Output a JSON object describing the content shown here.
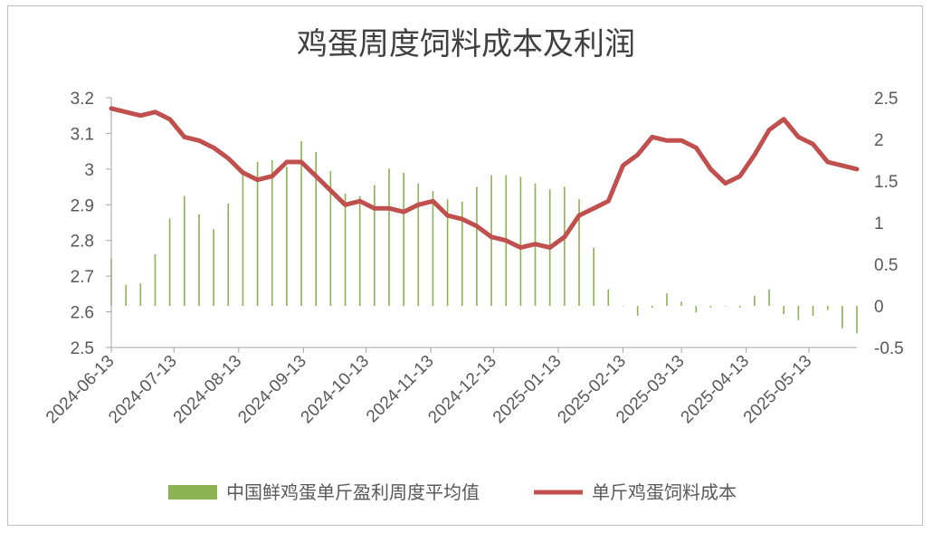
{
  "chart_data": {
    "type": "bar+line",
    "title": "鸡蛋周度饲料成本及利润",
    "x_tick_labels": [
      "2024-06-13",
      "2024-07-13",
      "2024-08-13",
      "2024-09-13",
      "2024-10-13",
      "2024-11-13",
      "2024-12-13",
      "2025-01-13",
      "2025-02-13",
      "2025-03-13",
      "2025-04-13",
      "2025-05-13"
    ],
    "y_left": {
      "min": 2.5,
      "max": 3.2,
      "step": 0.1,
      "tick_labels": [
        "2.5",
        "2.6",
        "2.7",
        "2.8",
        "2.9",
        "3",
        "3.1",
        "3.2"
      ]
    },
    "y_right": {
      "min": -0.5,
      "max": 2.5,
      "step": 0.5,
      "tick_labels": [
        "-0.5",
        "0",
        "0.5",
        "1",
        "1.5",
        "2",
        "2.5"
      ]
    },
    "series": [
      {
        "name": "中国鲜鸡蛋单斤盈利周度平均值",
        "type": "bar",
        "axis": "right",
        "color": "#8db254",
        "values": [
          0.57,
          0.25,
          0.27,
          0.62,
          1.05,
          1.32,
          1.1,
          0.92,
          1.23,
          1.58,
          1.73,
          1.75,
          1.67,
          1.98,
          1.85,
          1.62,
          1.35,
          1.32,
          1.45,
          1.65,
          1.6,
          1.47,
          1.38,
          1.28,
          1.25,
          1.43,
          1.57,
          1.57,
          1.55,
          1.47,
          1.4,
          1.43,
          1.28,
          0.7,
          0.2,
          0.0,
          -0.12,
          -0.02,
          0.15,
          0.05,
          -0.08,
          -0.02,
          0.0,
          -0.02,
          0.12,
          0.2,
          -0.1,
          -0.17,
          -0.12,
          -0.05,
          -0.27,
          -0.33
        ]
      },
      {
        "name": "单斤鸡蛋饲料成本",
        "type": "line",
        "axis": "left",
        "color": "#c0504d",
        "values": [
          3.17,
          3.16,
          3.15,
          3.16,
          3.14,
          3.09,
          3.08,
          3.06,
          3.03,
          2.99,
          2.97,
          2.98,
          3.02,
          3.02,
          2.98,
          2.94,
          2.9,
          2.91,
          2.89,
          2.89,
          2.88,
          2.9,
          2.91,
          2.87,
          2.86,
          2.84,
          2.81,
          2.8,
          2.78,
          2.79,
          2.78,
          2.81,
          2.87,
          2.89,
          2.91,
          3.01,
          3.04,
          3.09,
          3.08,
          3.08,
          3.06,
          3.0,
          2.96,
          2.98,
          3.04,
          3.11,
          3.14,
          3.09,
          3.07,
          3.02,
          3.01,
          3.0
        ]
      }
    ],
    "legend_position": "bottom",
    "grid": false
  }
}
